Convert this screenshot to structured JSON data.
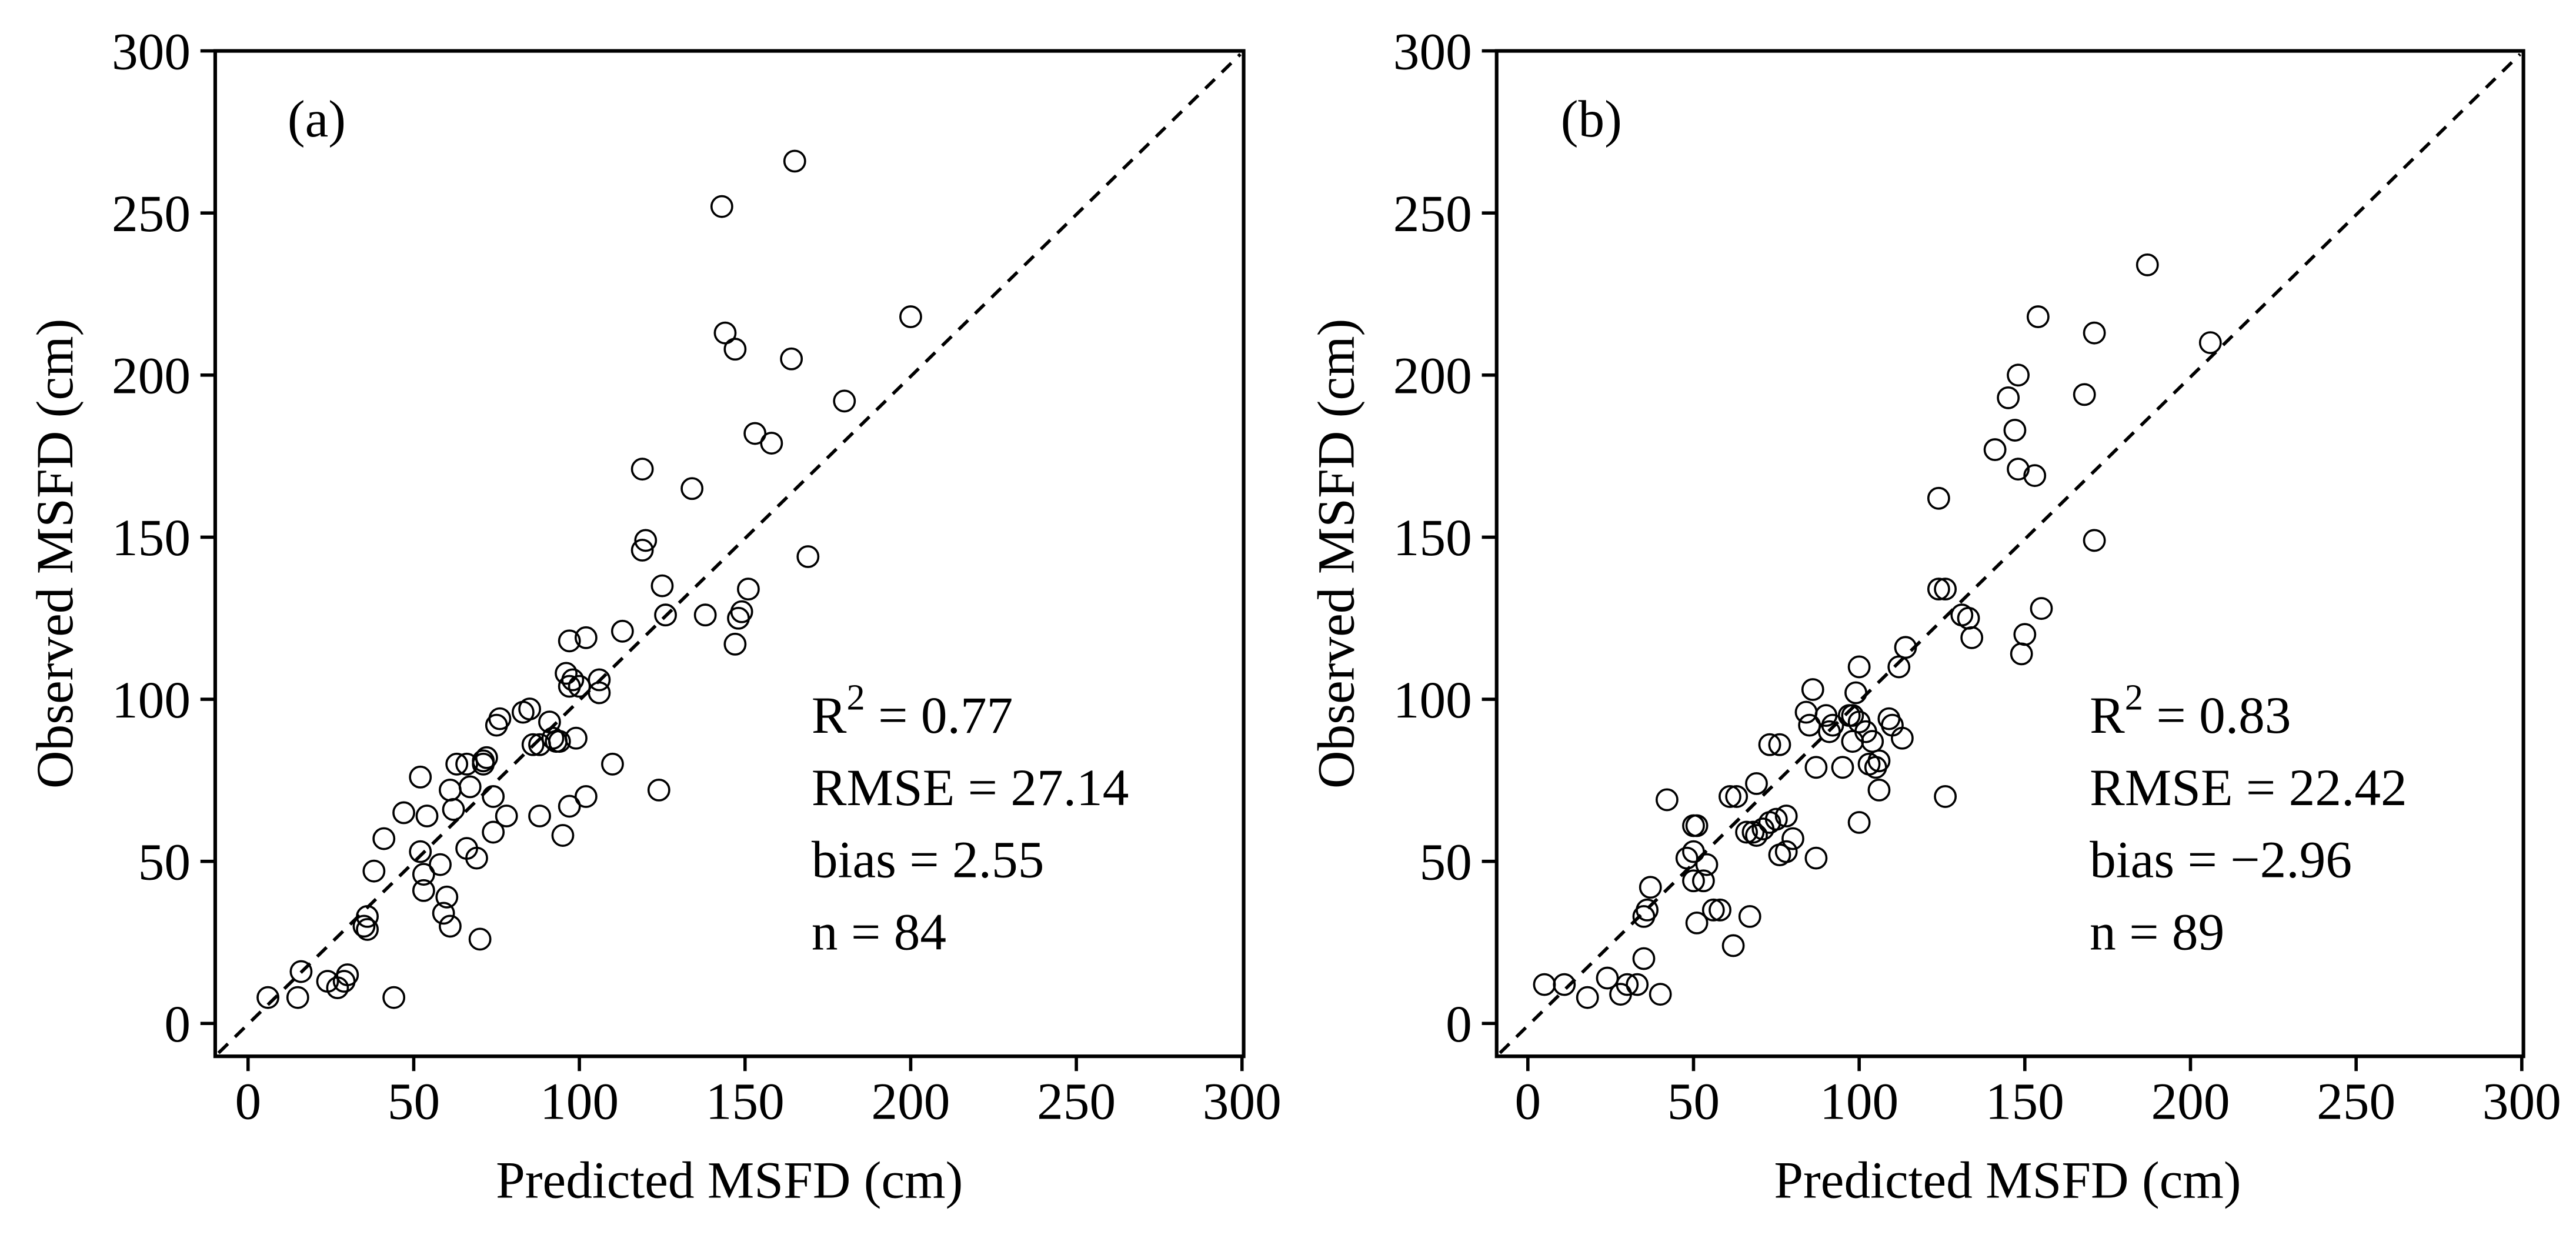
{
  "chart_data": [
    {
      "type": "scatter",
      "panel_label": "(a)",
      "title": "",
      "xlabel": "Predicted MSFD (cm)",
      "ylabel": "Observed MSFD (cm)",
      "xlim": [
        -10,
        300
      ],
      "ylim": [
        -10,
        300
      ],
      "xticks": [
        "0",
        "50",
        "100",
        "150",
        "200",
        "250",
        "300"
      ],
      "yticks": [
        "0",
        "50",
        "100",
        "150",
        "200",
        "250",
        "300"
      ],
      "reference_line": "1:1 dashed",
      "grid": false,
      "stats": [
        "R² = 0.77",
        "RMSE = 27.14",
        "bias = 2.55",
        "n = 84"
      ],
      "points": [
        [
          6,
          8
        ],
        [
          15,
          8
        ],
        [
          16,
          16
        ],
        [
          24,
          13
        ],
        [
          27,
          11
        ],
        [
          29,
          13
        ],
        [
          30,
          15
        ],
        [
          35,
          30
        ],
        [
          36,
          29
        ],
        [
          36,
          33
        ],
        [
          38,
          47
        ],
        [
          41,
          57
        ],
        [
          44,
          8
        ],
        [
          47,
          65
        ],
        [
          52,
          76
        ],
        [
          52,
          53
        ],
        [
          53,
          46
        ],
        [
          53,
          41
        ],
        [
          54,
          64
        ],
        [
          58,
          49
        ],
        [
          60,
          39
        ],
        [
          59,
          34
        ],
        [
          61,
          30
        ],
        [
          61,
          72
        ],
        [
          62,
          66
        ],
        [
          66,
          80
        ],
        [
          66,
          54
        ],
        [
          67,
          73
        ],
        [
          69,
          51
        ],
        [
          70,
          26
        ],
        [
          71,
          80
        ],
        [
          72,
          82
        ],
        [
          74,
          59
        ],
        [
          74,
          70
        ],
        [
          75,
          92
        ],
        [
          76,
          94
        ],
        [
          78,
          64
        ],
        [
          83,
          96
        ],
        [
          85,
          97
        ],
        [
          86,
          86
        ],
        [
          88,
          86
        ],
        [
          88,
          64
        ],
        [
          91,
          93
        ],
        [
          93,
          87
        ],
        [
          94,
          87
        ],
        [
          95,
          58
        ],
        [
          96,
          108
        ],
        [
          97,
          104
        ],
        [
          97,
          118
        ],
        [
          97,
          67
        ],
        [
          98,
          106
        ],
        [
          99,
          88
        ],
        [
          102,
          119
        ],
        [
          102,
          70
        ],
        [
          106,
          106
        ],
        [
          106,
          102
        ],
        [
          110,
          80
        ],
        [
          113,
          121
        ],
        [
          119,
          171
        ],
        [
          119,
          146
        ],
        [
          120,
          149
        ],
        [
          124,
          72
        ],
        [
          125,
          135
        ],
        [
          126,
          126
        ],
        [
          134,
          165
        ],
        [
          138,
          126
        ],
        [
          143,
          252
        ],
        [
          144,
          213
        ],
        [
          147,
          208
        ],
        [
          147,
          117
        ],
        [
          148,
          125
        ],
        [
          149,
          127
        ],
        [
          151,
          134
        ],
        [
          153,
          182
        ],
        [
          158,
          179
        ],
        [
          164,
          205
        ],
        [
          165,
          266
        ],
        [
          169,
          144
        ],
        [
          180,
          192
        ],
        [
          200,
          218
        ],
        [
          71,
          81
        ],
        [
          92,
          88
        ],
        [
          100,
          104
        ],
        [
          63,
          80
        ]
      ]
    },
    {
      "type": "scatter",
      "panel_label": "(b)",
      "title": "",
      "xlabel": "Predicted MSFD (cm)",
      "ylabel": "Observed MSFD (cm)",
      "xlim": [
        -10,
        300
      ],
      "ylim": [
        -10,
        300
      ],
      "xticks": [
        "0",
        "50",
        "100",
        "150",
        "200",
        "250",
        "300"
      ],
      "yticks": [
        "0",
        "50",
        "100",
        "150",
        "200",
        "250",
        "300"
      ],
      "reference_line": "1:1 dashed",
      "grid": false,
      "stats": [
        "R² = 0.83",
        "RMSE = 22.42",
        "bias = −2.96",
        "n = 89"
      ],
      "points": [
        [
          5,
          12
        ],
        [
          11,
          12
        ],
        [
          18,
          8
        ],
        [
          24,
          14
        ],
        [
          28,
          9
        ],
        [
          30,
          12
        ],
        [
          33,
          12
        ],
        [
          35,
          33
        ],
        [
          35,
          20
        ],
        [
          36,
          35
        ],
        [
          37,
          42
        ],
        [
          40,
          9
        ],
        [
          42,
          69
        ],
        [
          48,
          51
        ],
        [
          50,
          44
        ],
        [
          50,
          61
        ],
        [
          50,
          53
        ],
        [
          51,
          31
        ],
        [
          51,
          61
        ],
        [
          53,
          44
        ],
        [
          54,
          49
        ],
        [
          56,
          35
        ],
        [
          58,
          35
        ],
        [
          61,
          70
        ],
        [
          62,
          24
        ],
        [
          63,
          70
        ],
        [
          67,
          33
        ],
        [
          68,
          59
        ],
        [
          69,
          74
        ],
        [
          69,
          58
        ],
        [
          71,
          60
        ],
        [
          73,
          86
        ],
        [
          73,
          62
        ],
        [
          76,
          52
        ],
        [
          76,
          86
        ],
        [
          78,
          64
        ],
        [
          78,
          53
        ],
        [
          80,
          57
        ],
        [
          84,
          96
        ],
        [
          85,
          92
        ],
        [
          86,
          103
        ],
        [
          87,
          51
        ],
        [
          87,
          79
        ],
        [
          90,
          95
        ],
        [
          91,
          90
        ],
        [
          95,
          79
        ],
        [
          97,
          95
        ],
        [
          98,
          87
        ],
        [
          99,
          102
        ],
        [
          100,
          110
        ],
        [
          100,
          93
        ],
        [
          100,
          62
        ],
        [
          102,
          90
        ],
        [
          103,
          80
        ],
        [
          104,
          87
        ],
        [
          105,
          79
        ],
        [
          106,
          72
        ],
        [
          106,
          81
        ],
        [
          109,
          94
        ],
        [
          112,
          110
        ],
        [
          113,
          88
        ],
        [
          114,
          116
        ],
        [
          124,
          162
        ],
        [
          124,
          134
        ],
        [
          126,
          134
        ],
        [
          126,
          70
        ],
        [
          131,
          126
        ],
        [
          133,
          125
        ],
        [
          134,
          119
        ],
        [
          141,
          177
        ],
        [
          145,
          193
        ],
        [
          147,
          183
        ],
        [
          148,
          200
        ],
        [
          148,
          171
        ],
        [
          149,
          114
        ],
        [
          150,
          120
        ],
        [
          153,
          169
        ],
        [
          154,
          218
        ],
        [
          155,
          128
        ],
        [
          168,
          194
        ],
        [
          171,
          149
        ],
        [
          171,
          213
        ],
        [
          187,
          234
        ],
        [
          206,
          210
        ],
        [
          92,
          92
        ],
        [
          98,
          95
        ],
        [
          66,
          59
        ],
        [
          110,
          92
        ],
        [
          75,
          63
        ]
      ]
    }
  ]
}
